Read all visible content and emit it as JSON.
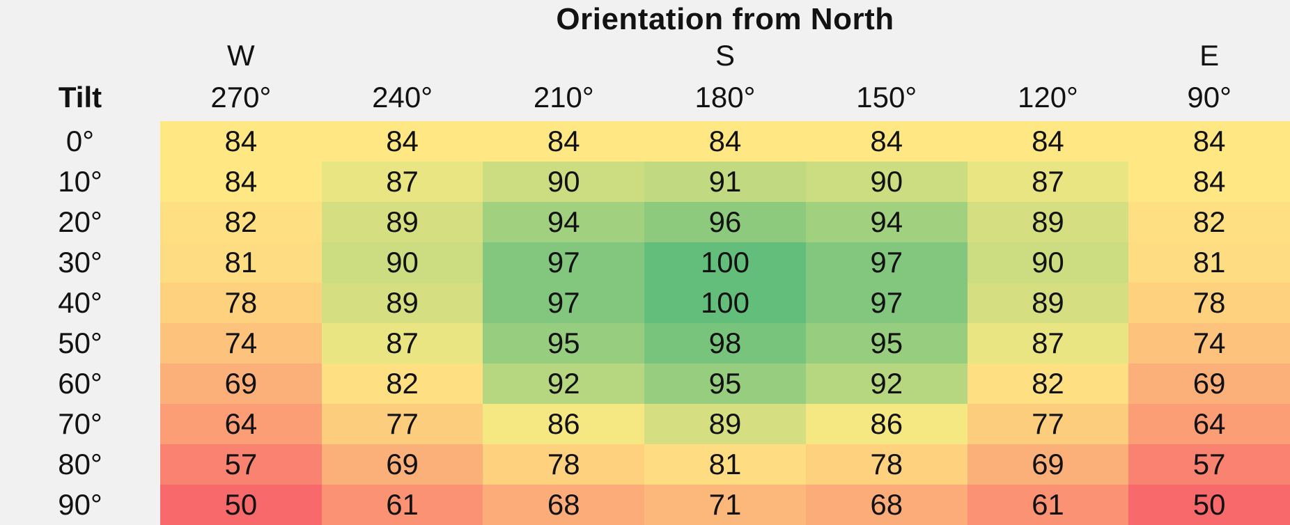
{
  "page": {
    "background": "#F1F1F2",
    "text_color": "#121212"
  },
  "chart_data": {
    "type": "heatmap",
    "title": "Orientation from North",
    "corner_label": "Tilt",
    "compass": [
      {
        "label": "W",
        "column_index": 0
      },
      {
        "label": "S",
        "column_index": 3
      },
      {
        "label": "E",
        "column_index": 6
      }
    ],
    "columns": [
      "270°",
      "240°",
      "210°",
      "180°",
      "150°",
      "120°",
      "90°"
    ],
    "rows": [
      "0°",
      "10°",
      "20°",
      "30°",
      "40°",
      "50°",
      "60°",
      "70°",
      "80°",
      "90°"
    ],
    "values": [
      [
        84,
        84,
        84,
        84,
        84,
        84,
        84
      ],
      [
        84,
        87,
        90,
        91,
        90,
        87,
        84
      ],
      [
        82,
        89,
        94,
        96,
        94,
        89,
        82
      ],
      [
        81,
        90,
        97,
        100,
        97,
        90,
        81
      ],
      [
        78,
        89,
        97,
        100,
        97,
        89,
        78
      ],
      [
        74,
        87,
        95,
        98,
        95,
        87,
        74
      ],
      [
        69,
        82,
        92,
        95,
        92,
        82,
        69
      ],
      [
        64,
        77,
        86,
        89,
        86,
        77,
        64
      ],
      [
        57,
        69,
        78,
        81,
        78,
        69,
        57
      ],
      [
        50,
        61,
        68,
        71,
        68,
        61,
        50
      ]
    ],
    "color_scale": {
      "min": {
        "value": 50,
        "color": "#F8696B"
      },
      "mid": {
        "value": 85,
        "color": "#FFEB84"
      },
      "max": {
        "value": 100,
        "color": "#63BE7B"
      }
    },
    "value_range": [
      50,
      100
    ]
  }
}
